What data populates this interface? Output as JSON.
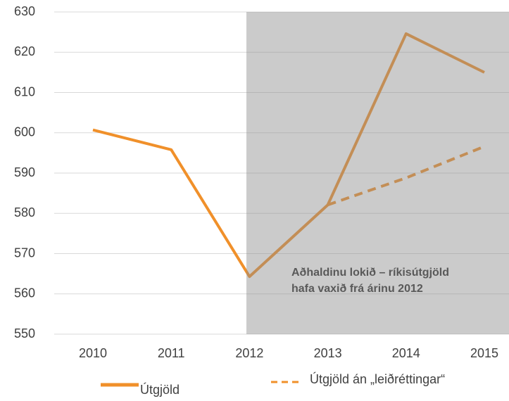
{
  "chart_data": {
    "type": "line",
    "categories": [
      "2010",
      "2011",
      "2012",
      "2013",
      "2014",
      "2015"
    ],
    "series": [
      {
        "name": "Útgjöld",
        "color": "#f0902a",
        "dashed": false,
        "values": [
          600.7,
          595.8,
          564.3,
          582.1,
          624.6,
          615.0
        ]
      },
      {
        "name": "Útgjöld án „leiðréttingar“",
        "color": "#f0902a",
        "dashed": true,
        "values": [
          null,
          null,
          null,
          582.1,
          588.8,
          596.6
        ]
      }
    ],
    "ylim": [
      550,
      630
    ],
    "yticks": [
      550,
      560,
      570,
      580,
      590,
      600,
      610,
      620,
      630
    ],
    "grid": true,
    "annotations": [
      "Aðhaldinu lokið – ríkisútgjöld",
      "hafa vaxið frá árinu 2012"
    ],
    "legend": "bottom"
  }
}
